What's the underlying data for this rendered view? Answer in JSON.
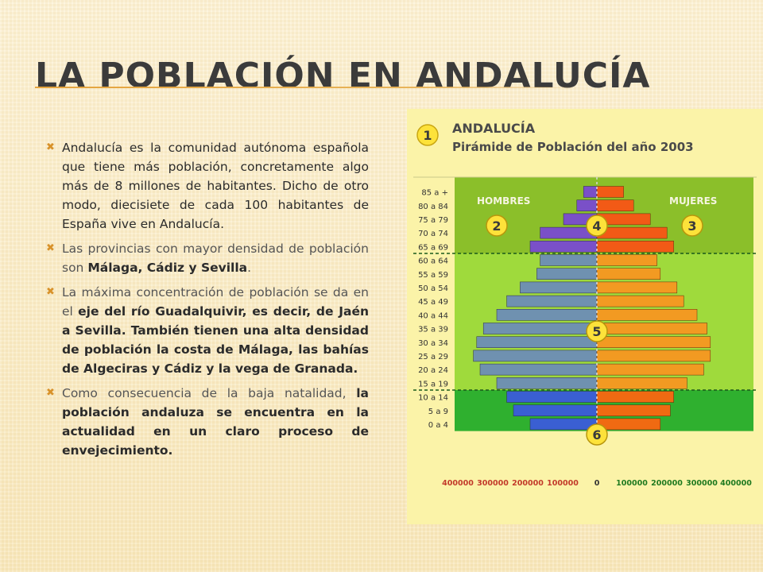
{
  "slide": {
    "title": "LA POBLACIÓN EN ANDALUCÍA",
    "bullets": [
      {
        "text": "Andalucía es la comunidad autónoma española que tiene más población, concretamente algo más de 8 millones de habitantes. Dicho de otro modo, diecisiete de cada 100 habitantes de España vive en Andalucía."
      },
      {
        "pre": "Las provincias con mayor densidad de población son ",
        "bold": "Málaga, Cádiz y Sevilla",
        "post": "."
      },
      {
        "pre": "La máxima concentración de población se da en el ",
        "bold": "eje del río Guadalquivir, es decir, de Jaén a Sevilla. También tienen una alta densidad de población la costa de Málaga, las bahías de Algeciras y Cádiz y la vega de Granada."
      },
      {
        "pre": "Como consecuencia de la baja natalidad, ",
        "bold": "la población andaluza se encuentra en la actualidad en un claro proceso de envejecimiento."
      }
    ],
    "accent_color": "#d8922a"
  },
  "figure": {
    "number_badge": "1",
    "title_line1": "ANDALUCÍA",
    "title_line2": "Pirámide de Población del año 2003",
    "label_men": "HOMBRES",
    "label_women": "MUJERES",
    "zone_markers": [
      "2",
      "3",
      "4",
      "5",
      "6"
    ],
    "age_groups": [
      "85 a +",
      "80 a 84",
      "75 a 79",
      "70 a 74",
      "65 a 69",
      "60 a 64",
      "55 a 59",
      "50 a 54",
      "45 a 49",
      "40 a 44",
      "35 a 39",
      "30 a 34",
      "25 a 29",
      "20 a 24",
      "15 a 19",
      "10 a 14",
      "5 a 9",
      "0 a 4"
    ],
    "x_ticks": [
      "400000",
      "300000",
      "200000",
      "100000",
      "0",
      "100000",
      "200000",
      "300000",
      "400000"
    ],
    "men": [
      40000,
      60000,
      100000,
      170000,
      200000,
      170000,
      180000,
      230000,
      270000,
      300000,
      340000,
      360000,
      370000,
      350000,
      300000,
      270000,
      250000,
      200000
    ],
    "women": [
      80000,
      110000,
      160000,
      210000,
      230000,
      180000,
      190000,
      240000,
      260000,
      300000,
      330000,
      340000,
      340000,
      320000,
      270000,
      230000,
      220000,
      190000
    ],
    "colors": {
      "old_zone": "#8bbf2a",
      "adult_zone": "#9fda3c",
      "young_zone": "#2fb02f",
      "men_old": "#7a50c8",
      "men_adult": "#6f91b0",
      "men_young": "#3a5fd2",
      "women_old": "#f25a16",
      "women_adult": "#f29a22",
      "women_young": "#f06a12"
    }
  }
}
